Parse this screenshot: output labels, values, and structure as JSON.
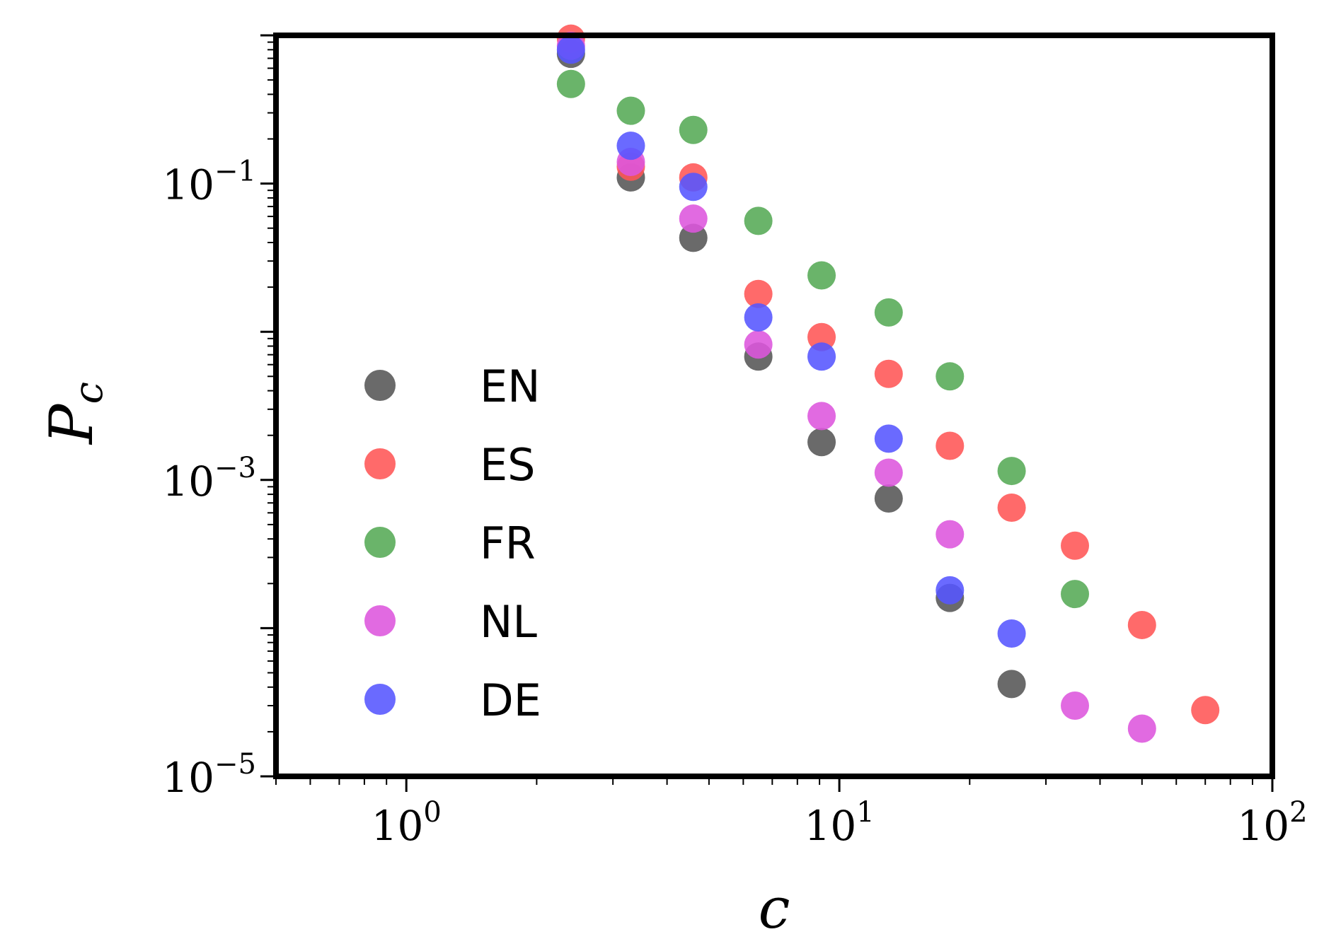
{
  "chart_data": {
    "type": "scatter",
    "xlabel": "c",
    "ylabel": "P",
    "ylabel_subscript": "c",
    "xscale": "log",
    "yscale": "log",
    "xlim": [
      0.5,
      100
    ],
    "ylim": [
      1e-05,
      1
    ],
    "grid": false,
    "legend_position": "left",
    "x_tick_labels": [
      {
        "value": 1,
        "base": "10",
        "exp": "0"
      },
      {
        "value": 10,
        "base": "10",
        "exp": "1"
      },
      {
        "value": 100,
        "base": "10",
        "exp": "2"
      }
    ],
    "y_tick_labels": [
      {
        "value": 0.1,
        "base": "10",
        "exp": "−1"
      },
      {
        "value": 0.001,
        "base": "10",
        "exp": "−3"
      },
      {
        "value": 1e-05,
        "base": "10",
        "exp": "−5"
      }
    ],
    "series": [
      {
        "name": "EN",
        "color": "#555555",
        "x": [
          2.4,
          3.3,
          4.6,
          6.5,
          9.1,
          13,
          18,
          25
        ],
        "y": [
          0.75,
          0.11,
          0.043,
          0.0068,
          0.0018,
          0.00075,
          0.00016,
          4.2e-05
        ]
      },
      {
        "name": "ES",
        "color": "#ff5555",
        "x": [
          2.4,
          3.3,
          4.6,
          6.5,
          9.1,
          13,
          18,
          25,
          35,
          50,
          70
        ],
        "y": [
          0.95,
          0.13,
          0.11,
          0.018,
          0.0092,
          0.0052,
          0.0017,
          0.00065,
          0.00036,
          0.000105,
          2.8e-05
        ]
      },
      {
        "name": "FR",
        "color": "#55aa55",
        "x": [
          2.4,
          3.3,
          4.6,
          6.5,
          9.1,
          13,
          18,
          25,
          35
        ],
        "y": [
          0.47,
          0.31,
          0.23,
          0.056,
          0.024,
          0.0135,
          0.005,
          0.00115,
          0.00017
        ]
      },
      {
        "name": "NL",
        "color": "#dd55dd",
        "x": [
          2.4,
          3.3,
          4.6,
          6.5,
          9.1,
          13,
          18,
          35,
          50
        ],
        "y": [
          0.85,
          0.14,
          0.058,
          0.0082,
          0.0027,
          0.00112,
          0.00043,
          3e-05,
          2.1e-05
        ]
      },
      {
        "name": "DE",
        "color": "#5555ff",
        "x": [
          2.4,
          3.3,
          4.6,
          6.5,
          9.1,
          13,
          18,
          25
        ],
        "y": [
          0.8,
          0.18,
          0.095,
          0.0125,
          0.0068,
          0.0019,
          0.00018,
          9.2e-05
        ]
      }
    ]
  }
}
